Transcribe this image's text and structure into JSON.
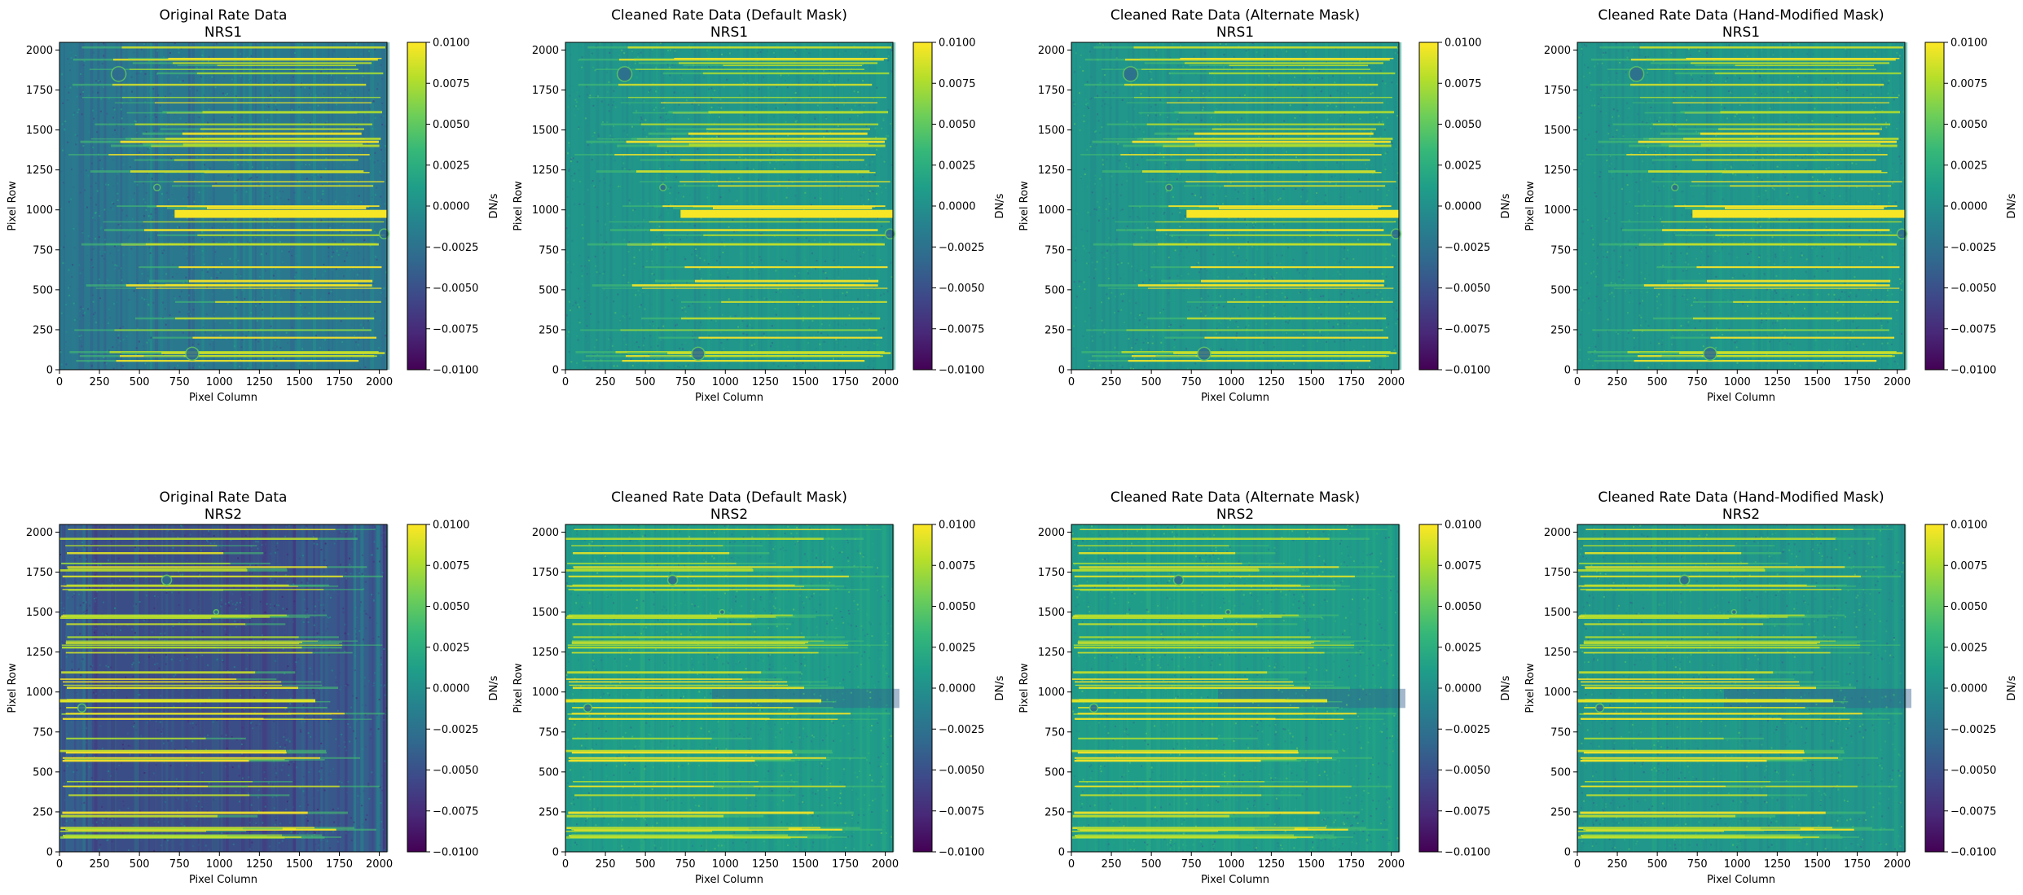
{
  "figure": {
    "background": "#ffffff"
  },
  "colormap": {
    "name": "viridis",
    "stops": [
      "#440154",
      "#482878",
      "#3e4989",
      "#31688e",
      "#26828e",
      "#1f9e89",
      "#35b779",
      "#6ece58",
      "#b5de2b",
      "#fde725"
    ]
  },
  "chart_data": [
    {
      "type": "heatmap",
      "detector": "NRS1",
      "title": "Original Rate Data\nNRS1",
      "xlabel": "Pixel Column",
      "ylabel": "Pixel Row",
      "xlim": [
        0,
        2048
      ],
      "ylim": [
        0,
        2048
      ],
      "xticks": [
        0,
        250,
        500,
        750,
        1000,
        1250,
        1500,
        1750,
        2000
      ],
      "yticks": [
        0,
        250,
        500,
        750,
        1000,
        1250,
        1500,
        1750,
        2000
      ],
      "colorbar": {
        "label": "DN/s",
        "vmin": -0.01,
        "vmax": 0.01,
        "ticks": [
          "−0.0100",
          "−0.0075",
          "−0.0050",
          "−0.0025",
          "0.0000",
          "0.0025",
          "0.0050",
          "0.0075",
          "0.0100"
        ]
      },
      "background_level": -0.002
    },
    {
      "type": "heatmap",
      "detector": "NRS1",
      "title": "Cleaned Rate Data (Default Mask)\nNRS1",
      "xlabel": "Pixel Column",
      "ylabel": "Pixel Row",
      "xlim": [
        0,
        2048
      ],
      "ylim": [
        0,
        2048
      ],
      "xticks": [
        0,
        250,
        500,
        750,
        1000,
        1250,
        1500,
        1750,
        2000
      ],
      "yticks": [
        0,
        250,
        500,
        750,
        1000,
        1250,
        1500,
        1750,
        2000
      ],
      "colorbar": {
        "label": "DN/s",
        "vmin": -0.01,
        "vmax": 0.01,
        "ticks": [
          "−0.0100",
          "−0.0075",
          "−0.0050",
          "−0.0025",
          "0.0000",
          "0.0025",
          "0.0050",
          "0.0075",
          "0.0100"
        ]
      },
      "background_level": 0.0005
    },
    {
      "type": "heatmap",
      "detector": "NRS1",
      "title": "Cleaned Rate Data (Alternate Mask)\nNRS1",
      "xlabel": "Pixel Column",
      "ylabel": "Pixel Row",
      "xlim": [
        0,
        2048
      ],
      "ylim": [
        0,
        2048
      ],
      "xticks": [
        0,
        250,
        500,
        750,
        1000,
        1250,
        1500,
        1750,
        2000
      ],
      "yticks": [
        0,
        250,
        500,
        750,
        1000,
        1250,
        1500,
        1750,
        2000
      ],
      "colorbar": {
        "label": "DN/s",
        "vmin": -0.01,
        "vmax": 0.01,
        "ticks": [
          "−0.0100",
          "−0.0075",
          "−0.0050",
          "−0.0025",
          "0.0000",
          "0.0025",
          "0.0050",
          "0.0075",
          "0.0100"
        ]
      },
      "background_level": 0.0005
    },
    {
      "type": "heatmap",
      "detector": "NRS1",
      "title": "Cleaned Rate Data (Hand-Modified Mask)\nNRS1",
      "xlabel": "Pixel Column",
      "ylabel": "Pixel Row",
      "xlim": [
        0,
        2048
      ],
      "ylim": [
        0,
        2048
      ],
      "xticks": [
        0,
        250,
        500,
        750,
        1000,
        1250,
        1500,
        1750,
        2000
      ],
      "yticks": [
        0,
        250,
        500,
        750,
        1000,
        1250,
        1500,
        1750,
        2000
      ],
      "colorbar": {
        "label": "DN/s",
        "vmin": -0.01,
        "vmax": 0.01,
        "ticks": [
          "−0.0100",
          "−0.0075",
          "−0.0050",
          "−0.0025",
          "0.0000",
          "0.0025",
          "0.0050",
          "0.0075",
          "0.0100"
        ]
      },
      "background_level": 0.0005
    },
    {
      "type": "heatmap",
      "detector": "NRS2",
      "title": "Original Rate Data\nNRS2",
      "xlabel": "Pixel Column",
      "ylabel": "Pixel Row",
      "xlim": [
        0,
        2048
      ],
      "ylim": [
        0,
        2048
      ],
      "xticks": [
        0,
        250,
        500,
        750,
        1000,
        1250,
        1500,
        1750,
        2000
      ],
      "yticks": [
        0,
        250,
        500,
        750,
        1000,
        1250,
        1500,
        1750,
        2000
      ],
      "colorbar": {
        "label": "DN/s",
        "vmin": -0.01,
        "vmax": 0.01,
        "ticks": [
          "−0.0100",
          "−0.0075",
          "−0.0050",
          "−0.0025",
          "0.0000",
          "0.0025",
          "0.0050",
          "0.0075",
          "0.0100"
        ]
      },
      "background_level": -0.004
    },
    {
      "type": "heatmap",
      "detector": "NRS2",
      "title": "Cleaned Rate Data (Default Mask)\nNRS2",
      "xlabel": "Pixel Column",
      "ylabel": "Pixel Row",
      "xlim": [
        0,
        2048
      ],
      "ylim": [
        0,
        2048
      ],
      "xticks": [
        0,
        250,
        500,
        750,
        1000,
        1250,
        1500,
        1750,
        2000
      ],
      "yticks": [
        0,
        250,
        500,
        750,
        1000,
        1250,
        1500,
        1750,
        2000
      ],
      "colorbar": {
        "label": "DN/s",
        "vmin": -0.01,
        "vmax": 0.01,
        "ticks": [
          "−0.0100",
          "−0.0075",
          "−0.0050",
          "−0.0025",
          "0.0000",
          "0.0025",
          "0.0050",
          "0.0075",
          "0.0100"
        ]
      },
      "background_level": 0.001
    },
    {
      "type": "heatmap",
      "detector": "NRS2",
      "title": "Cleaned Rate Data (Alternate Mask)\nNRS2",
      "xlabel": "Pixel Column",
      "ylabel": "Pixel Row",
      "xlim": [
        0,
        2048
      ],
      "ylim": [
        0,
        2048
      ],
      "xticks": [
        0,
        250,
        500,
        750,
        1000,
        1250,
        1500,
        1750,
        2000
      ],
      "yticks": [
        0,
        250,
        500,
        750,
        1000,
        1250,
        1500,
        1750,
        2000
      ],
      "colorbar": {
        "label": "DN/s",
        "vmin": -0.01,
        "vmax": 0.01,
        "ticks": [
          "−0.0100",
          "−0.0075",
          "−0.0050",
          "−0.0025",
          "0.0000",
          "0.0025",
          "0.0050",
          "0.0075",
          "0.0100"
        ]
      },
      "background_level": 0.001
    },
    {
      "type": "heatmap",
      "detector": "NRS2",
      "title": "Cleaned Rate Data (Hand-Modified Mask)\nNRS2",
      "xlabel": "Pixel Column",
      "ylabel": "Pixel Row",
      "xlim": [
        0,
        2048
      ],
      "ylim": [
        0,
        2048
      ],
      "xticks": [
        0,
        250,
        500,
        750,
        1000,
        1250,
        1500,
        1750,
        2000
      ],
      "yticks": [
        0,
        250,
        500,
        750,
        1000,
        1250,
        1500,
        1750,
        2000
      ],
      "colorbar": {
        "label": "DN/s",
        "vmin": -0.01,
        "vmax": 0.01,
        "ticks": [
          "−0.0100",
          "−0.0075",
          "−0.0050",
          "−0.0025",
          "0.0000",
          "0.0025",
          "0.0050",
          "0.0075",
          "0.0100"
        ]
      },
      "background_level": 0.0005
    }
  ]
}
